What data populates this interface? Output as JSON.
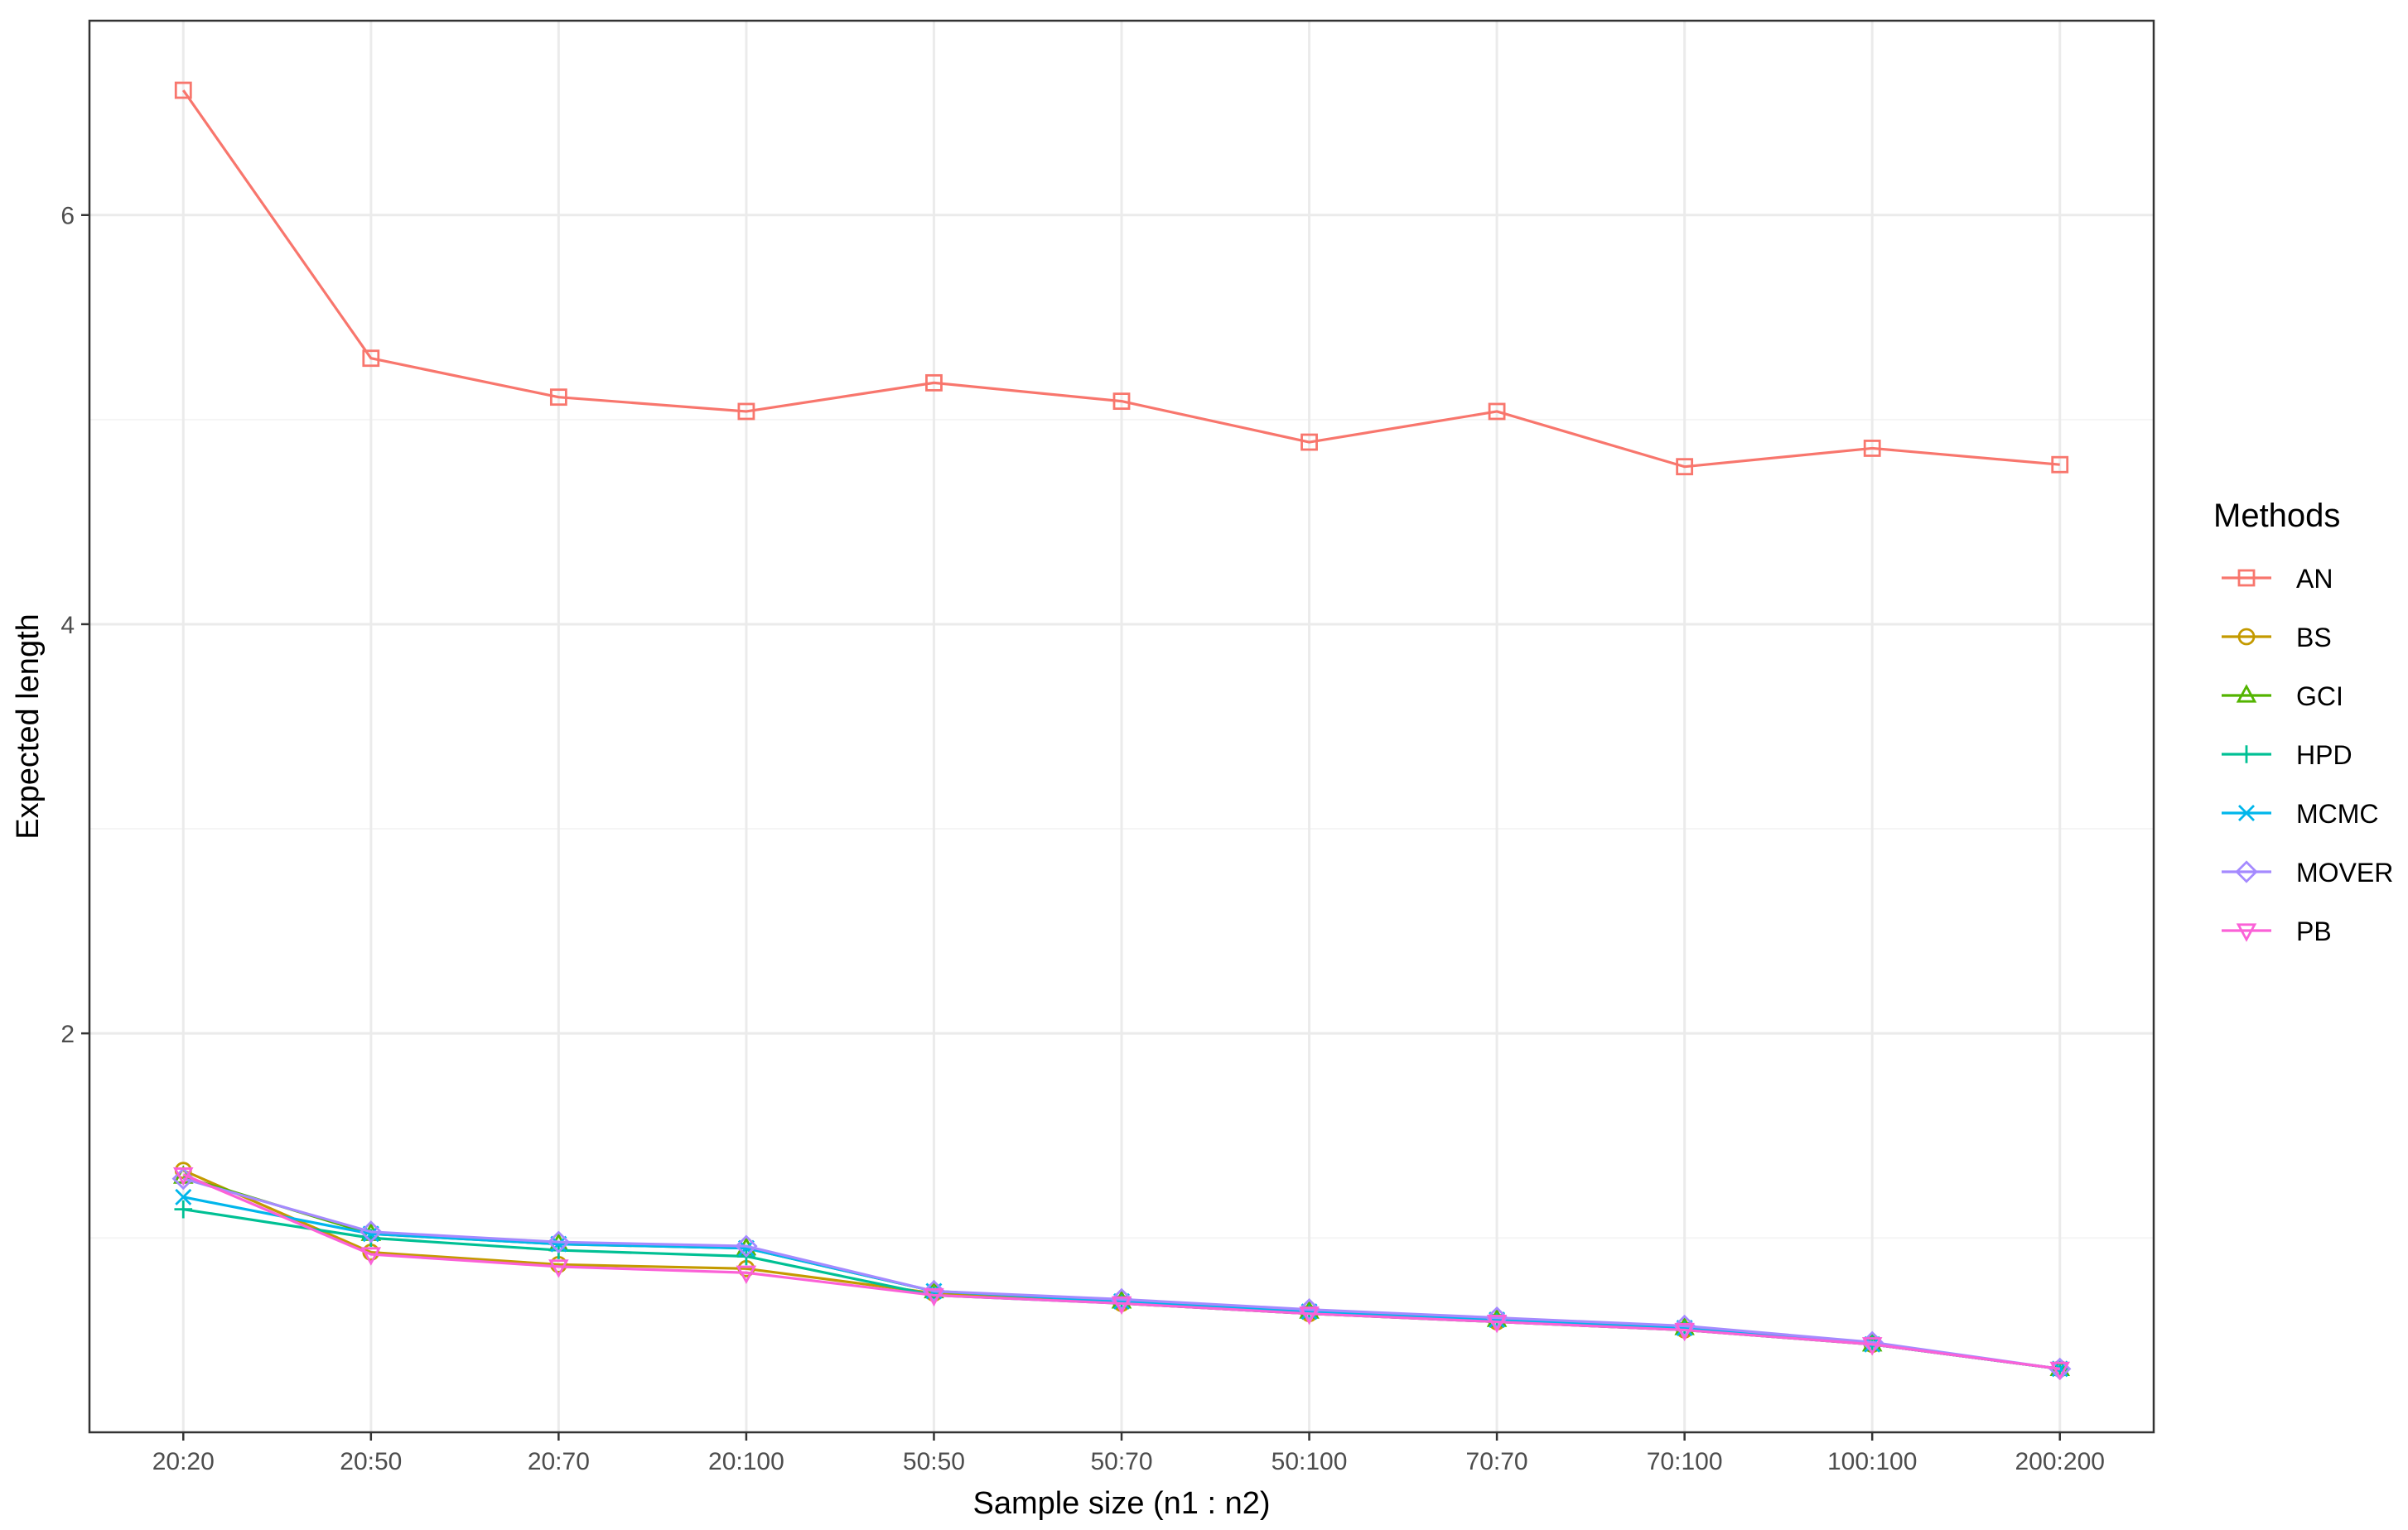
{
  "chart_data": {
    "type": "line",
    "xlabel": "Sample size (n1 : n2)",
    "ylabel": "Expected length",
    "categories": [
      "20:20",
      "20:50",
      "20:70",
      "20:100",
      "50:50",
      "50:70",
      "50:100",
      "70:70",
      "70:100",
      "100:100",
      "200:200"
    ],
    "ylim": [
      0.05,
      6.95
    ],
    "y_ticks": [
      2,
      4,
      6
    ],
    "y_tick_labels": [
      "2",
      "4",
      "6"
    ],
    "grid": true,
    "legend": {
      "title": "Methods",
      "position": "right"
    },
    "series": [
      {
        "name": "AN",
        "color": "#F8766D",
        "marker": "square",
        "values": [
          6.61,
          5.3,
          5.11,
          5.04,
          5.18,
          5.09,
          4.89,
          5.04,
          4.77,
          4.86,
          4.78
        ]
      },
      {
        "name": "BS",
        "color": "#C49A00",
        "marker": "circle",
        "values": [
          1.33,
          0.93,
          0.87,
          0.85,
          0.73,
          0.68,
          0.63,
          0.59,
          0.55,
          0.48,
          0.36
        ]
      },
      {
        "name": "GCI",
        "color": "#53B400",
        "marker": "triangle",
        "values": [
          1.3,
          1.02,
          0.97,
          0.95,
          0.74,
          0.69,
          0.64,
          0.6,
          0.56,
          0.48,
          0.36
        ]
      },
      {
        "name": "HPD",
        "color": "#00C094",
        "marker": "plus",
        "values": [
          1.14,
          1.0,
          0.94,
          0.91,
          0.72,
          0.68,
          0.63,
          0.59,
          0.55,
          0.48,
          0.36
        ]
      },
      {
        "name": "MCMC",
        "color": "#00B6EB",
        "marker": "x",
        "values": [
          1.2,
          1.02,
          0.97,
          0.95,
          0.74,
          0.69,
          0.64,
          0.6,
          0.56,
          0.48,
          0.36
        ]
      },
      {
        "name": "MOVER",
        "color": "#A58AFF",
        "marker": "diamond",
        "values": [
          1.29,
          1.03,
          0.98,
          0.96,
          0.74,
          0.7,
          0.65,
          0.61,
          0.57,
          0.49,
          0.36
        ]
      },
      {
        "name": "PB",
        "color": "#FB61D7",
        "marker": "triangle-down",
        "values": [
          1.31,
          0.92,
          0.86,
          0.83,
          0.72,
          0.68,
          0.63,
          0.59,
          0.55,
          0.48,
          0.36
        ]
      }
    ]
  },
  "colors": {
    "panel_border": "#333333",
    "grid_major": "#ebebeb",
    "grid_minor": "#f5f5f5",
    "tick_text": "#4d4d4d"
  }
}
